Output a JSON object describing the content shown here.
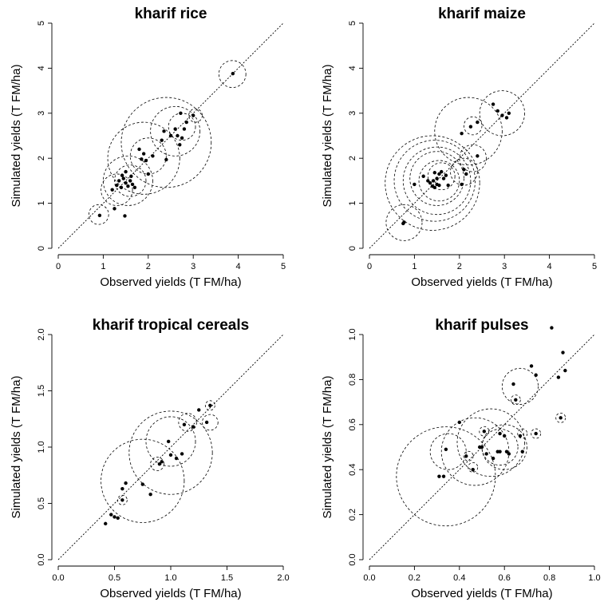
{
  "chart_data": [
    {
      "type": "scatter",
      "title": "kharif rice",
      "xlabel": "Observed yields (T FM/ha)",
      "ylabel": "Simulated yields (T FM/ha)",
      "xlim": [
        0,
        5
      ],
      "ylim": [
        0,
        5
      ],
      "xticks": [
        "0",
        "1",
        "2",
        "3",
        "4",
        "5"
      ],
      "yticks": [
        "0",
        "1",
        "2",
        "3",
        "4",
        "5"
      ],
      "identity_line": true,
      "points": [
        [
          0.92,
          0.73
        ],
        [
          1.25,
          0.88
        ],
        [
          1.48,
          0.72
        ],
        [
          1.2,
          1.3
        ],
        [
          1.3,
          1.4
        ],
        [
          1.35,
          1.5
        ],
        [
          1.4,
          1.35
        ],
        [
          1.45,
          1.55
        ],
        [
          1.5,
          1.45
        ],
        [
          1.55,
          1.38
        ],
        [
          1.6,
          1.5
        ],
        [
          1.65,
          1.42
        ],
        [
          1.7,
          1.35
        ],
        [
          1.5,
          1.7
        ],
        [
          1.42,
          1.62
        ],
        [
          1.62,
          1.6
        ],
        [
          1.85,
          1.98
        ],
        [
          1.95,
          1.95
        ],
        [
          1.9,
          2.1
        ],
        [
          1.8,
          2.2
        ],
        [
          2.0,
          1.65
        ],
        [
          2.1,
          2.05
        ],
        [
          2.3,
          2.4
        ],
        [
          2.35,
          2.6
        ],
        [
          2.4,
          1.97
        ],
        [
          2.5,
          2.5
        ],
        [
          2.6,
          2.65
        ],
        [
          2.7,
          2.3
        ],
        [
          2.65,
          2.5
        ],
        [
          2.75,
          2.45
        ],
        [
          2.8,
          2.65
        ],
        [
          2.72,
          3.0
        ],
        [
          2.85,
          2.8
        ],
        [
          3.0,
          2.95
        ],
        [
          3.88,
          3.88
        ]
      ],
      "circles": [
        [
          0.9,
          0.75,
          0.22
        ],
        [
          1.3,
          1.3,
          0.35
        ],
        [
          1.55,
          1.5,
          0.55
        ],
        [
          1.6,
          1.5,
          0.35
        ],
        [
          1.9,
          2.0,
          0.8
        ],
        [
          2.0,
          2.05,
          0.4
        ],
        [
          2.4,
          2.35,
          1.0
        ],
        [
          2.6,
          2.6,
          0.55
        ],
        [
          2.75,
          2.7,
          0.3
        ],
        [
          3.05,
          2.95,
          0.15
        ],
        [
          3.87,
          3.87,
          0.3
        ]
      ]
    },
    {
      "type": "scatter",
      "title": "kharif maize",
      "xlabel": "Observed yields (T FM/ha)",
      "ylabel": "Simulated yields (T FM/ha)",
      "xlim": [
        0,
        5
      ],
      "ylim": [
        0,
        5
      ],
      "xticks": [
        "0",
        "1",
        "2",
        "3",
        "4",
        "5"
      ],
      "yticks": [
        "0",
        "1",
        "2",
        "3",
        "4",
        "5"
      ],
      "identity_line": true,
      "points": [
        [
          0.75,
          0.55
        ],
        [
          0.77,
          0.58
        ],
        [
          1.0,
          1.42
        ],
        [
          1.2,
          1.6
        ],
        [
          1.3,
          1.5
        ],
        [
          1.35,
          1.45
        ],
        [
          1.4,
          1.38
        ],
        [
          1.42,
          1.5
        ],
        [
          1.45,
          1.68
        ],
        [
          1.5,
          1.55
        ],
        [
          1.5,
          1.42
        ],
        [
          1.55,
          1.65
        ],
        [
          1.6,
          1.7
        ],
        [
          1.65,
          1.55
        ],
        [
          1.7,
          1.62
        ],
        [
          1.45,
          1.35
        ],
        [
          1.55,
          1.4
        ],
        [
          1.75,
          1.4
        ],
        [
          2.05,
          1.42
        ],
        [
          2.1,
          1.75
        ],
        [
          2.15,
          1.65
        ],
        [
          2.05,
          2.55
        ],
        [
          2.25,
          2.7
        ],
        [
          2.4,
          2.8
        ],
        [
          2.4,
          2.05
        ],
        [
          2.75,
          3.2
        ],
        [
          2.85,
          3.05
        ],
        [
          2.95,
          2.95
        ],
        [
          3.05,
          2.9
        ],
        [
          3.1,
          3.0
        ]
      ],
      "circles": [
        [
          0.77,
          0.57,
          0.4
        ],
        [
          1.4,
          1.45,
          1.05
        ],
        [
          1.45,
          1.5,
          0.9
        ],
        [
          1.5,
          1.5,
          0.75
        ],
        [
          1.5,
          1.55,
          0.6
        ],
        [
          1.55,
          1.5,
          0.45
        ],
        [
          1.6,
          1.6,
          0.3
        ],
        [
          2.1,
          1.7,
          0.3
        ],
        [
          2.3,
          2.0,
          0.3
        ],
        [
          2.2,
          2.6,
          0.75
        ],
        [
          2.3,
          2.72,
          0.2
        ],
        [
          2.95,
          3.0,
          0.5
        ]
      ]
    },
    {
      "type": "scatter",
      "title": "kharif tropical cereals",
      "xlabel": "Observed yields (T FM/ha)",
      "ylabel": "Simulated yields (T FM/ha)",
      "xlim": [
        0,
        2
      ],
      "ylim": [
        0,
        2
      ],
      "xticks": [
        "0.0",
        "0.5",
        "1.0",
        "1.5",
        "2.0"
      ],
      "yticks": [
        "0.0",
        "0.5",
        "1.0",
        "1.5",
        "2.0"
      ],
      "identity_line": true,
      "points": [
        [
          0.42,
          0.32
        ],
        [
          0.47,
          0.4
        ],
        [
          0.5,
          0.38
        ],
        [
          0.53,
          0.37
        ],
        [
          0.57,
          0.53
        ],
        [
          0.57,
          0.63
        ],
        [
          0.6,
          0.68
        ],
        [
          0.75,
          0.67
        ],
        [
          0.82,
          0.58
        ],
        [
          0.9,
          0.85
        ],
        [
          0.92,
          0.87
        ],
        [
          0.98,
          1.05
        ],
        [
          1.0,
          0.93
        ],
        [
          1.05,
          0.9
        ],
        [
          1.1,
          0.94
        ],
        [
          1.12,
          1.2
        ],
        [
          1.2,
          1.18
        ],
        [
          1.25,
          1.33
        ],
        [
          1.32,
          1.22
        ],
        [
          1.35,
          1.37
        ]
      ],
      "circles": [
        [
          0.57,
          0.53,
          0.035
        ],
        [
          0.75,
          0.7,
          0.37
        ],
        [
          0.88,
          0.85,
          0.06
        ],
        [
          1.0,
          0.95,
          0.37
        ],
        [
          1.0,
          1.05,
          0.22
        ],
        [
          1.15,
          1.22,
          0.08
        ],
        [
          1.35,
          1.22,
          0.07
        ],
        [
          1.35,
          1.37,
          0.04
        ]
      ]
    },
    {
      "type": "scatter",
      "title": "kharif pulses",
      "xlabel": "Observed yields (T FM/ha)",
      "ylabel": "Simulated yields (T FM/ha)",
      "xlim": [
        0,
        1
      ],
      "ylim": [
        0,
        1
      ],
      "xticks": [
        "0.0",
        "0.2",
        "0.4",
        "0.6",
        "0.8",
        "1.0"
      ],
      "yticks": [
        "0.0",
        "0.2",
        "0.4",
        "0.6",
        "0.8",
        "1.0"
      ],
      "identity_line": true,
      "points": [
        [
          0.31,
          0.37
        ],
        [
          0.33,
          0.37
        ],
        [
          0.34,
          0.49
        ],
        [
          0.4,
          0.61
        ],
        [
          0.43,
          0.46
        ],
        [
          0.46,
          0.4
        ],
        [
          0.49,
          0.5
        ],
        [
          0.5,
          0.5
        ],
        [
          0.51,
          0.57
        ],
        [
          0.52,
          0.47
        ],
        [
          0.55,
          0.45
        ],
        [
          0.57,
          0.48
        ],
        [
          0.58,
          0.48
        ],
        [
          0.58,
          0.56
        ],
        [
          0.6,
          0.55
        ],
        [
          0.61,
          0.48
        ],
        [
          0.62,
          0.47
        ],
        [
          0.64,
          0.78
        ],
        [
          0.65,
          0.71
        ],
        [
          0.67,
          0.55
        ],
        [
          0.68,
          0.48
        ],
        [
          0.72,
          0.86
        ],
        [
          0.74,
          0.56
        ],
        [
          0.74,
          0.82
        ],
        [
          0.81,
          1.03
        ],
        [
          0.84,
          0.81
        ],
        [
          0.85,
          0.63
        ],
        [
          0.86,
          0.92
        ],
        [
          0.87,
          0.84
        ]
      ],
      "circles": [
        [
          0.34,
          0.37,
          0.22
        ],
        [
          0.35,
          0.48,
          0.08
        ],
        [
          0.44,
          0.46,
          0.02
        ],
        [
          0.46,
          0.41,
          0.02
        ],
        [
          0.47,
          0.48,
          0.15
        ],
        [
          0.51,
          0.57,
          0.02
        ],
        [
          0.54,
          0.52,
          0.15
        ],
        [
          0.58,
          0.5,
          0.08
        ],
        [
          0.6,
          0.5,
          0.1
        ],
        [
          0.65,
          0.71,
          0.02
        ],
        [
          0.67,
          0.77,
          0.08
        ],
        [
          0.68,
          0.56,
          0.02
        ],
        [
          0.74,
          0.56,
          0.02
        ],
        [
          0.85,
          0.63,
          0.02
        ]
      ]
    }
  ]
}
